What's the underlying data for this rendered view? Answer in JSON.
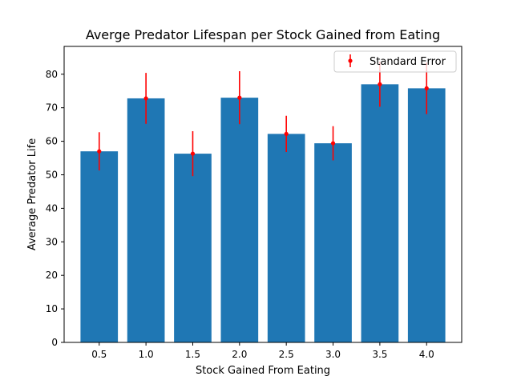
{
  "chart_data": {
    "type": "bar",
    "title": "Averge Predator Lifespan per Stock Gained from Eating",
    "xlabel": "Stock Gained From Eating",
    "ylabel": "Average Predator Life",
    "categories": [
      "0.5",
      "1.0",
      "1.5",
      "2.0",
      "2.5",
      "3.0",
      "3.5",
      "4.0"
    ],
    "values": [
      57.0,
      72.8,
      56.3,
      73.0,
      62.2,
      59.4,
      77.0,
      75.8
    ],
    "errors": [
      5.7,
      7.6,
      6.7,
      7.9,
      5.4,
      5.1,
      6.7,
      7.7
    ],
    "ylim": [
      0,
      88.3
    ],
    "yticks": [
      0,
      10,
      20,
      30,
      40,
      50,
      60,
      70,
      80
    ],
    "bar_color": "#1f77b4",
    "error_color": "#ff0000",
    "grid": false,
    "legend": {
      "placement": "top-right",
      "entries": [
        {
          "label": "Standard Error"
        }
      ]
    }
  }
}
